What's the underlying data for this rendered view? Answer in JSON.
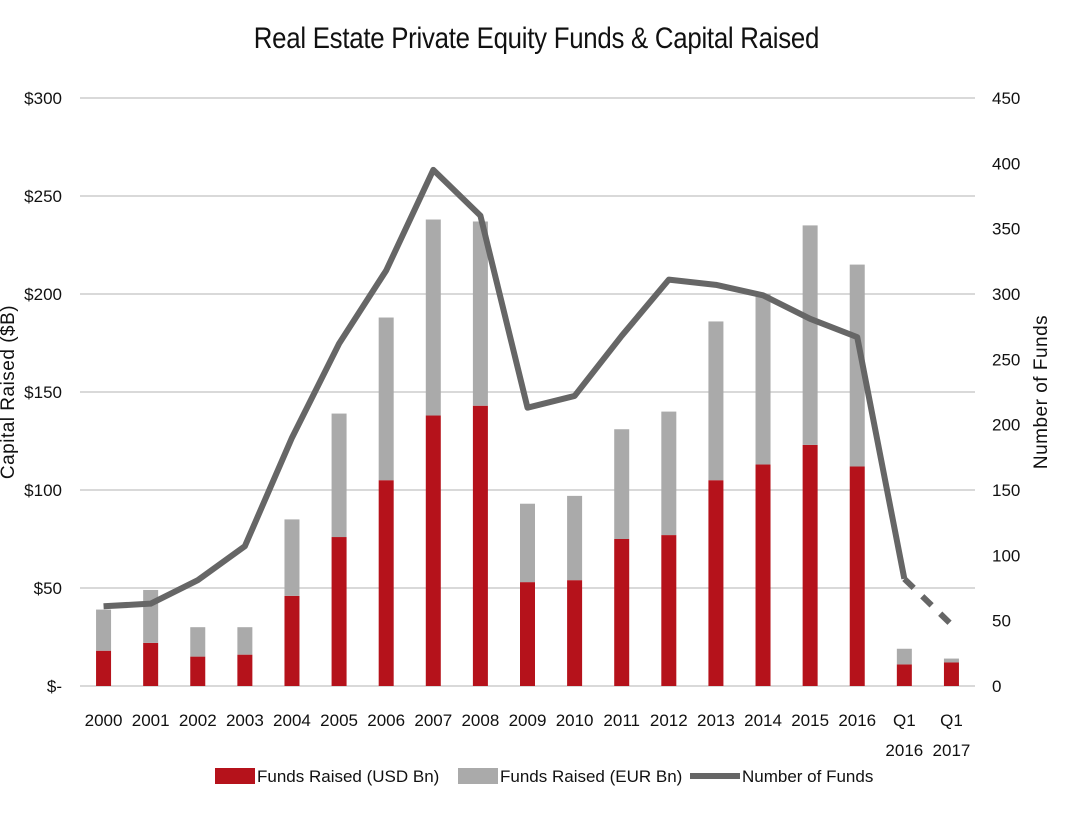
{
  "chart_data": {
    "type": "bar",
    "title": "Real Estate Private Equity Funds & Capital Raised",
    "categories": [
      "2000",
      "2001",
      "2002",
      "2003",
      "2004",
      "2005",
      "2006",
      "2007",
      "2008",
      "2009",
      "2010",
      "2011",
      "2012",
      "2013",
      "2014",
      "2015",
      "2016",
      "Q1 2016",
      "Q1 2017"
    ],
    "stacked": true,
    "series": [
      {
        "name": "Funds Raised (USD Bn)",
        "type": "bar",
        "axis": "left",
        "color": "#b5121b",
        "values": [
          18,
          22,
          15,
          16,
          46,
          76,
          105,
          138,
          143,
          53,
          54,
          75,
          77,
          105,
          113,
          123,
          112,
          11,
          12
        ]
      },
      {
        "name": "Funds Raised (EUR Bn)",
        "type": "bar",
        "axis": "left",
        "color": "#aaaaaa",
        "values": [
          21,
          27,
          15,
          14,
          39,
          63,
          83,
          100,
          94,
          40,
          43,
          56,
          63,
          81,
          87,
          112,
          103,
          8,
          2
        ]
      },
      {
        "name": "Number of Funds",
        "type": "line",
        "axis": "right",
        "color": "#666666",
        "values": [
          61,
          63,
          81,
          107,
          190,
          262,
          318,
          395,
          360,
          213,
          222,
          268,
          311,
          307,
          299,
          281,
          267,
          82,
          47
        ],
        "dashed_last_segment": true
      }
    ],
    "ylabel": "Capital Raised ($B)",
    "y2label": "Number of Funds",
    "ylim": [
      0,
      300
    ],
    "y2lim": [
      0,
      450
    ],
    "yticks": [
      "$-",
      "$50",
      "$100",
      "$150",
      "$200",
      "$250",
      "$300"
    ],
    "y2ticks": [
      "0",
      "50",
      "100",
      "150",
      "200",
      "250",
      "300",
      "350",
      "400",
      "450"
    ],
    "grid": true,
    "legend": "bottom"
  }
}
